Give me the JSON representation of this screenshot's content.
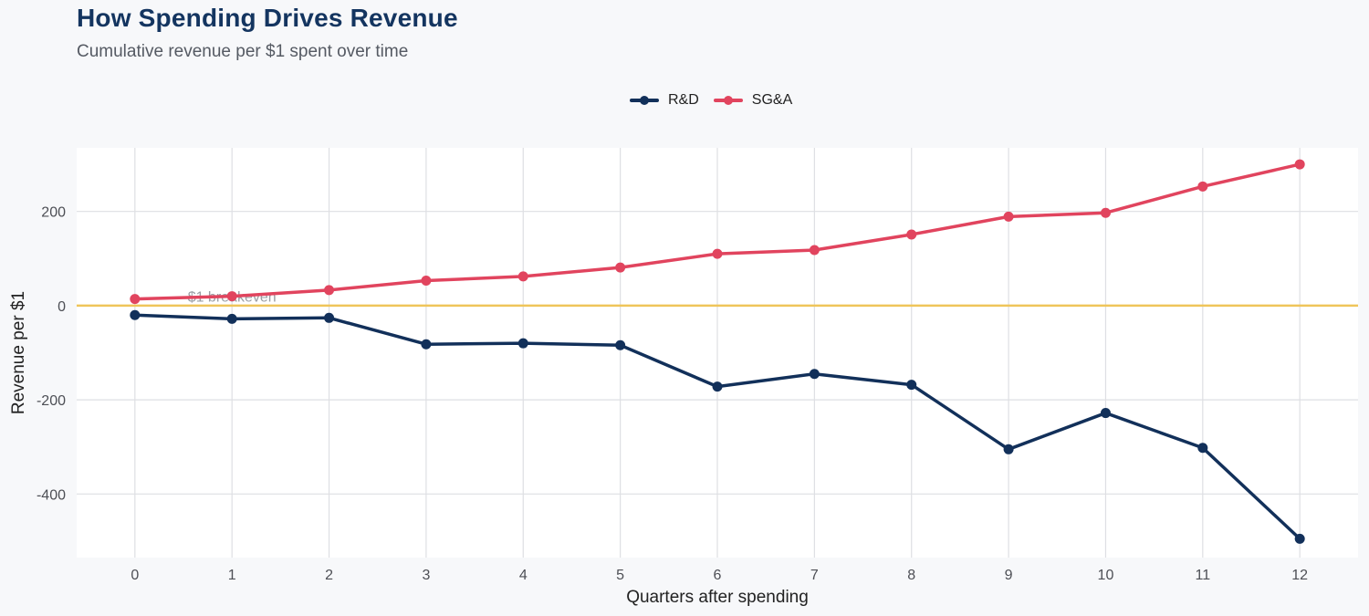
{
  "title": "How Spending Drives Revenue",
  "subtitle": "Cumulative revenue per $1 spent over time",
  "colors": {
    "background": "#f7f8fa",
    "plot_background": "#ffffff",
    "grid": "#dedfe3",
    "reference_line": "#efc55a",
    "title": "#143560"
  },
  "chart_data": {
    "type": "line",
    "title": "How Spending Drives Revenue",
    "subtitle": "Cumulative revenue per $1 spent over time",
    "xlabel": "Quarters after spending",
    "ylabel": "Revenue per $1",
    "x": [
      0,
      1,
      2,
      3,
      4,
      5,
      6,
      7,
      8,
      9,
      10,
      11,
      12
    ],
    "xlim": [
      -0.6,
      12.6
    ],
    "ylim": [
      -535,
      335
    ],
    "xticks": [
      0,
      1,
      2,
      3,
      4,
      5,
      6,
      7,
      8,
      9,
      10,
      11,
      12
    ],
    "yticks": [
      -400,
      -200,
      0,
      200
    ],
    "grid": true,
    "legend_position": "top",
    "series": [
      {
        "name": "R&D",
        "color": "#12305a",
        "values": [
          -20,
          -28,
          -26,
          -82,
          -80,
          -84,
          -172,
          -145,
          -168,
          -305,
          -228,
          -302,
          -495
        ]
      },
      {
        "name": "SG&A",
        "color": "#e1445e",
        "values": [
          14,
          20,
          33,
          53,
          62,
          81,
          110,
          118,
          151,
          189,
          197,
          253,
          300
        ]
      }
    ],
    "annotations": [
      {
        "text": "$1 breakeven",
        "x": 1,
        "y": 20,
        "color": "#9a9da3"
      }
    ],
    "reference_line": {
      "y": 0,
      "color": "#efc55a"
    }
  }
}
